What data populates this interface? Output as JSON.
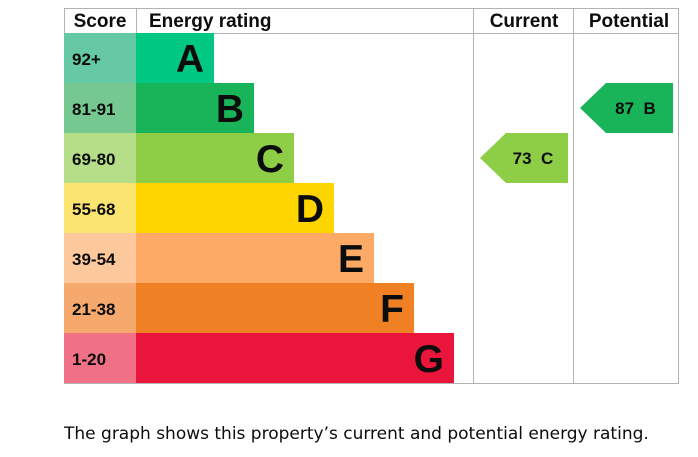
{
  "headers": {
    "score": "Score",
    "rating": "Energy rating",
    "current": "Current",
    "potential": "Potential"
  },
  "chart_data": {
    "type": "bar",
    "bands": [
      {
        "letter": "A",
        "range": "92+",
        "min": 92,
        "max": null,
        "color": "#00c781",
        "score_bg": "#65c9a3"
      },
      {
        "letter": "B",
        "range": "81-91",
        "min": 81,
        "max": 91,
        "color": "#19b459",
        "score_bg": "#76c891"
      },
      {
        "letter": "C",
        "range": "69-80",
        "min": 69,
        "max": 80,
        "color": "#8dce46",
        "score_bg": "#b6dd87"
      },
      {
        "letter": "D",
        "range": "55-68",
        "min": 55,
        "max": 68,
        "color": "#ffd500",
        "score_bg": "#fce470"
      },
      {
        "letter": "E",
        "range": "39-54",
        "min": 39,
        "max": 54,
        "color": "#fcaa65",
        "score_bg": "#fdc89b"
      },
      {
        "letter": "F",
        "range": "21-38",
        "min": 21,
        "max": 38,
        "color": "#ef8023",
        "score_bg": "#f5a96c"
      },
      {
        "letter": "G",
        "range": "1-20",
        "min": 1,
        "max": 20,
        "color": "#e9153b",
        "score_bg": "#f07186"
      }
    ],
    "current": {
      "score": 73,
      "band": "C",
      "label": "73  C"
    },
    "potential": {
      "score": 87,
      "band": "B",
      "label": "87  B"
    }
  },
  "caption": "The graph shows this property’s current and potential energy rating."
}
